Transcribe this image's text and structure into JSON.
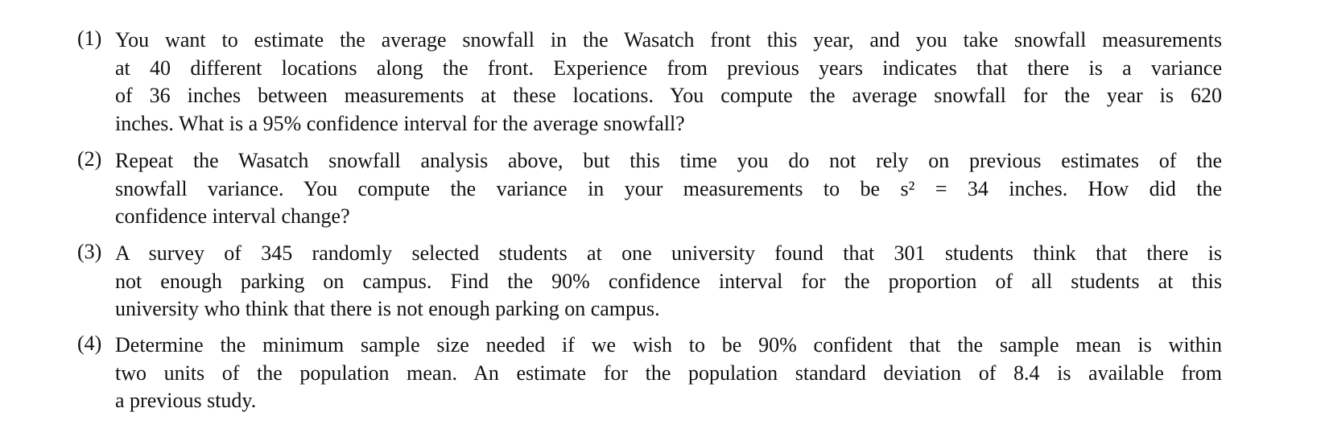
{
  "items": [
    {
      "number": "(1)",
      "lines": [
        "You want to estimate the average snowfall in the Wasatch front this year, and you take snowfall measurements",
        "at 40 different locations along the front.  Experience from previous years indicates that there is a variance",
        "of 36 inches between measurements at these locations.  You compute the average snowfall for the year is 620",
        "inches.  What is a 95% confidence interval for the average snowfall?"
      ]
    },
    {
      "number": "(2)",
      "lines": [
        "Repeat the Wasatch snowfall analysis above, but this time you do not rely on previous estimates of the",
        "snowfall variance.  You compute the variance in your measurements to be s² = 34 inches.  How did the",
        "confidence interval change?"
      ]
    },
    {
      "number": "(3)",
      "lines": [
        "A survey of 345 randomly selected students at one university found that 301 students think that there is",
        "not enough parking on campus.  Find the 90% confidence interval for the proportion of all students at this",
        "university who think that there is not enough parking on campus."
      ]
    },
    {
      "number": "(4)",
      "lines": [
        "Determine the minimum sample size needed if we wish to be 90% confident that the sample mean is within",
        "two units of the population mean.  An estimate for the population standard deviation of 8.4 is available from",
        "a previous study."
      ]
    }
  ]
}
